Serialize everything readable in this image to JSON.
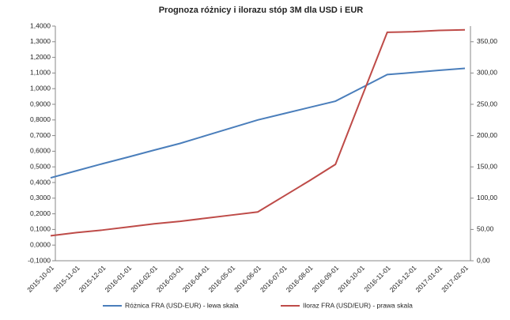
{
  "chart_data": {
    "type": "line",
    "title": "Prognoza różnicy i ilorazu  stóp 3M dla USD i EUR",
    "categories": [
      "2015-10-01",
      "2015-11-01",
      "2015-12-01",
      "2016-01-01",
      "2016-02-01",
      "2016-03-01",
      "2016-04-01",
      "2016-05-01",
      "2016-06-01",
      "2016-07-01",
      "2016-08-01",
      "2016-09-01",
      "2016-10-01",
      "2016-11-01",
      "2016-12-01",
      "2017-01-01",
      "2017-02-01"
    ],
    "series": [
      {
        "name": "Różnica FRA (USD-EUR) - lewa skala",
        "color": "#4a7ebb",
        "values": [
          0.43,
          0.475,
          0.52,
          0.563,
          0.607,
          0.65,
          0.7,
          0.75,
          0.8,
          0.84,
          0.88,
          0.92,
          1.005,
          1.09,
          1.103,
          1.117,
          1.13
        ]
      },
      {
        "name": "Iloraz FRA (USD/EUR) - prawa skala",
        "color": "#be4b48",
        "axis": "y2",
        "values": [
          40,
          45,
          49,
          54,
          59,
          63,
          68,
          73,
          78,
          103,
          128,
          154,
          260,
          365,
          366,
          368,
          369
        ]
      }
    ],
    "ylim": [
      -0.1,
      1.4
    ],
    "yticks": [
      {
        "value": -0.1,
        "label": "-0,1000"
      },
      {
        "value": 0,
        "label": "0,0000"
      },
      {
        "value": 0.1,
        "label": "0,1000"
      },
      {
        "value": 0.2,
        "label": "0,2000"
      },
      {
        "value": 0.3,
        "label": "0,3000"
      },
      {
        "value": 0.4,
        "label": "0,4000"
      },
      {
        "value": 0.5,
        "label": "0,5000"
      },
      {
        "value": 0.6,
        "label": "0,6000"
      },
      {
        "value": 0.7,
        "label": "0,7000"
      },
      {
        "value": 0.8,
        "label": "0,8000"
      },
      {
        "value": 0.9,
        "label": "0,9000"
      },
      {
        "value": 1.0,
        "label": "1,0000"
      },
      {
        "value": 1.1,
        "label": "1,1000"
      },
      {
        "value": 1.2,
        "label": "1,2000"
      },
      {
        "value": 1.3,
        "label": "1,3000"
      },
      {
        "value": 1.4,
        "label": "1,4000"
      }
    ],
    "y2lim": [
      0,
      375
    ],
    "y2ticks": [
      {
        "value": 0,
        "label": "0,00"
      },
      {
        "value": 50,
        "label": "50,00"
      },
      {
        "value": 100,
        "label": "100,00"
      },
      {
        "value": 150,
        "label": "150,00"
      },
      {
        "value": 200,
        "label": "200,00"
      },
      {
        "value": 250,
        "label": "250,00"
      },
      {
        "value": 300,
        "label": "300,00"
      },
      {
        "value": 350,
        "label": "350,00"
      }
    ],
    "grid": false,
    "legend": "bottom"
  }
}
